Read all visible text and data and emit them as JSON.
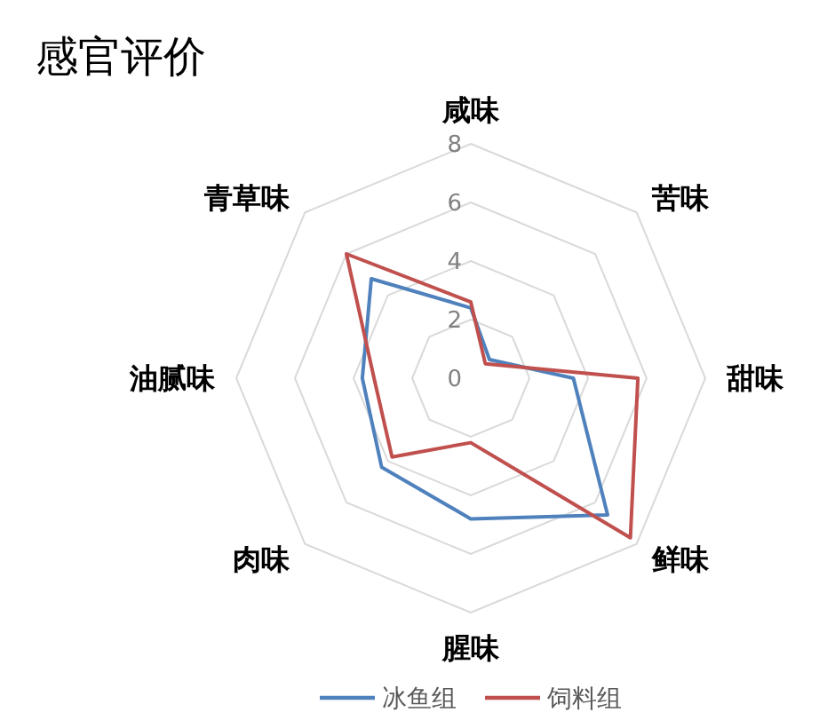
{
  "chart_data": {
    "type": "radar",
    "title": "感官评价",
    "categories": [
      "咸味",
      "苦味",
      "甜味",
      "鲜味",
      "腥味",
      "肉味",
      "油腻味",
      "青草味"
    ],
    "series": [
      {
        "name": "冰鱼组",
        "color": "#4f81bd",
        "values": [
          2.4,
          0.9,
          3.5,
          6.6,
          4.8,
          4.3,
          3.7,
          4.8
        ]
      },
      {
        "name": "饲料组",
        "color": "#c0504d",
        "values": [
          2.6,
          0.7,
          5.7,
          7.7,
          2.2,
          3.8,
          3.3,
          6.0
        ]
      }
    ],
    "ylim": [
      0,
      8
    ],
    "yticks": [
      0,
      2,
      4,
      6,
      8
    ],
    "grid": true,
    "legend": "bottom"
  }
}
